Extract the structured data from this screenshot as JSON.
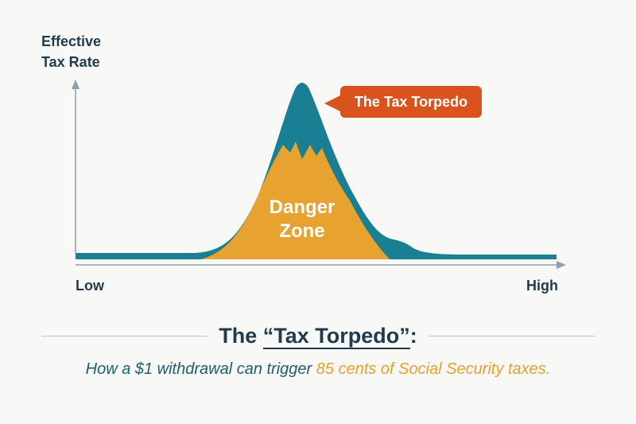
{
  "diagram": {
    "y_axis_label_line1": "Effective",
    "y_axis_label_line2": "Tax Rate",
    "x_axis_low": "Low",
    "x_axis_high": "High",
    "callout": "The Tax Torpedo",
    "zone_line1": "Danger",
    "zone_line2": "Zone"
  },
  "title": {
    "prefix": "The ",
    "quoted": "“Tax Torpedo”",
    "suffix": ":"
  },
  "subtitle": {
    "part1": "How a $1 withdrawal can trigger ",
    "highlight": "85 cents of Social Security taxes."
  },
  "colors": {
    "curve_teal": "#1a7f92",
    "danger_zone": "#e7a22f",
    "callout": "#d9531f",
    "text_navy": "#1f3b4d",
    "highlight": "#e6a12e"
  }
}
